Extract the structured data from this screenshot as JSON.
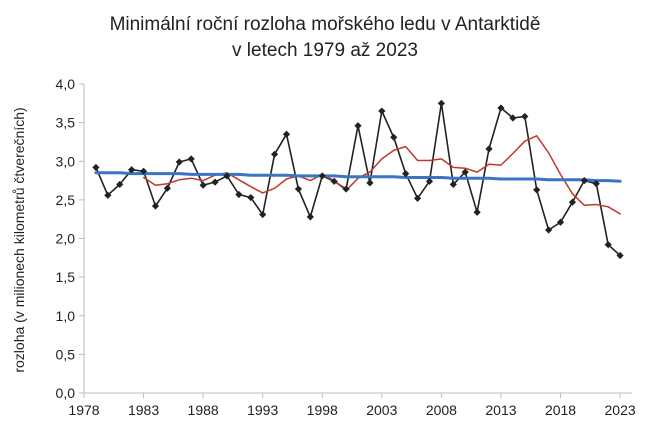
{
  "chart_data": {
    "type": "line",
    "title": "Minimální roční rozloha mořského ledu v Antarktidě",
    "subtitle": "v letech 1979 až 2023",
    "ylabel": "rozloha (v milionech kilometrů čtverečních)",
    "xlabel": "",
    "xlim": [
      1978,
      2024
    ],
    "ylim": [
      0,
      4
    ],
    "x_ticks": [
      1978,
      1983,
      1988,
      1993,
      1998,
      2003,
      2008,
      2013,
      2018,
      2023
    ],
    "y_ticks": [
      "0,0",
      "0,5",
      "1,0",
      "1,5",
      "2,0",
      "2,5",
      "3,0",
      "3,5",
      "4,0"
    ],
    "y_tick_values": [
      0,
      0.5,
      1,
      1.5,
      2,
      2.5,
      3,
      3.5,
      4
    ],
    "grid": false,
    "x": [
      1979,
      1980,
      1981,
      1982,
      1983,
      1984,
      1985,
      1986,
      1987,
      1988,
      1989,
      1990,
      1991,
      1992,
      1993,
      1994,
      1995,
      1996,
      1997,
      1998,
      1999,
      2000,
      2001,
      2002,
      2003,
      2004,
      2005,
      2006,
      2007,
      2008,
      2009,
      2010,
      2011,
      2012,
      2013,
      2014,
      2015,
      2016,
      2017,
      2018,
      2019,
      2020,
      2021,
      2022,
      2023
    ],
    "series": [
      {
        "key": "annual",
        "color": "#222222",
        "values": [
          2.92,
          2.56,
          2.7,
          2.89,
          2.87,
          2.42,
          2.65,
          2.99,
          3.03,
          2.69,
          2.73,
          2.81,
          2.57,
          2.53,
          2.31,
          3.09,
          3.35,
          2.64,
          2.28,
          2.81,
          2.74,
          2.64,
          3.46,
          2.72,
          3.65,
          3.31,
          2.84,
          2.52,
          2.74,
          3.75,
          2.7,
          2.86,
          2.34,
          3.16,
          3.69,
          3.56,
          3.58,
          2.63,
          2.11,
          2.21,
          2.47,
          2.75,
          2.71,
          1.92,
          1.78
        ]
      },
      {
        "key": "moving_average",
        "color": "#c0392b",
        "values": [
          null,
          null,
          null,
          null,
          2.79,
          2.69,
          2.71,
          2.76,
          2.78,
          2.75,
          2.82,
          2.85,
          2.76,
          2.67,
          2.59,
          2.65,
          2.77,
          2.81,
          2.75,
          2.83,
          2.75,
          2.62,
          2.78,
          2.86,
          3.03,
          3.14,
          3.19,
          3.01,
          3.01,
          3.03,
          2.92,
          2.91,
          2.86,
          2.96,
          2.95,
          3.1,
          3.26,
          3.33,
          3.11,
          2.83,
          2.58,
          2.43,
          2.44,
          2.41,
          2.32
        ]
      },
      {
        "key": "trend",
        "color": "#3a75c4",
        "values": [
          2.85,
          2.85,
          2.85,
          2.84,
          2.84,
          2.84,
          2.84,
          2.84,
          2.83,
          2.83,
          2.83,
          2.83,
          2.83,
          2.82,
          2.82,
          2.82,
          2.82,
          2.81,
          2.81,
          2.81,
          2.81,
          2.8,
          2.8,
          2.8,
          2.8,
          2.8,
          2.79,
          2.79,
          2.79,
          2.79,
          2.78,
          2.78,
          2.78,
          2.78,
          2.77,
          2.77,
          2.77,
          2.77,
          2.76,
          2.76,
          2.76,
          2.76,
          2.75,
          2.75,
          2.74
        ]
      }
    ]
  }
}
